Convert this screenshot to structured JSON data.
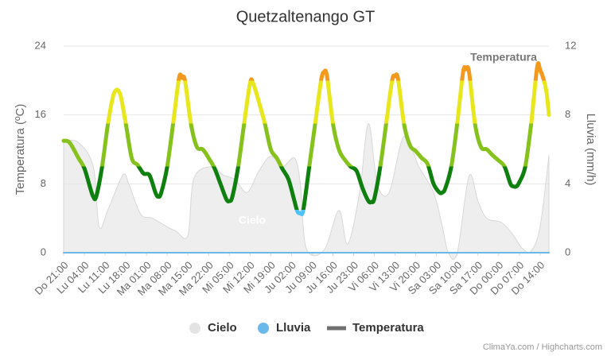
{
  "chart_data": {
    "type": "line",
    "title": "Quetzaltenango GT",
    "y_label": "Temperatura (ºC)",
    "y2_label": "Lluvia (mm/h)",
    "xlim": [
      0,
      164
    ],
    "xticks": [
      {
        "value": 0,
        "label": "Do 21:00"
      },
      {
        "value": 7,
        "label": "Lu 04:00"
      },
      {
        "value": 14,
        "label": "Lu 11:00"
      },
      {
        "value": 21,
        "label": "Lu 18:00"
      },
      {
        "value": 28,
        "label": "Ma 01:00"
      },
      {
        "value": 35,
        "label": "Ma 08:00"
      },
      {
        "value": 42,
        "label": "Ma 15:00"
      },
      {
        "value": 49,
        "label": "Ma 22:00"
      },
      {
        "value": 56,
        "label": "Mi 05:00"
      },
      {
        "value": 63,
        "label": "Mi 12:00"
      },
      {
        "value": 70,
        "label": "Mi 19:00"
      },
      {
        "value": 77,
        "label": "Ju 02:00"
      },
      {
        "value": 84,
        "label": "Ju 09:00"
      },
      {
        "value": 91,
        "label": "Ju 16:00"
      },
      {
        "value": 98,
        "label": "Ju 23:00"
      },
      {
        "value": 105,
        "label": "Vi 06:00"
      },
      {
        "value": 112,
        "label": "Vi 13:00"
      },
      {
        "value": 119,
        "label": "Vi 20:00"
      },
      {
        "value": 126,
        "label": "Sa 03:00"
      },
      {
        "value": 133,
        "label": "Sa 10:00"
      },
      {
        "value": 140,
        "label": "Sa 17:00"
      },
      {
        "value": 147,
        "label": "Do 00:00"
      },
      {
        "value": 154,
        "label": "Do 07:00"
      },
      {
        "value": 161,
        "label": "Do 14:00"
      }
    ],
    "ylim": [
      0,
      24
    ],
    "yticks": [
      0,
      8,
      16,
      24
    ],
    "y2lim": [
      0,
      12
    ],
    "y2ticks": [
      0,
      4,
      8,
      12
    ],
    "grid": true,
    "series": [
      {
        "name": "Cielo",
        "type": "area",
        "color": "#e3e3e3",
        "x": [
          0,
          5,
          10,
          12,
          15,
          20,
          22,
          26,
          30,
          35,
          38,
          42,
          44,
          50,
          54,
          58,
          62,
          66,
          70,
          74,
          78,
          80,
          82,
          88,
          93,
          96,
          100,
          103,
          106,
          110,
          115,
          120,
          125,
          128,
          130,
          133,
          137,
          140,
          143,
          148,
          152,
          155,
          158,
          161,
          164
        ],
        "values": [
          13,
          12.8,
          10,
          3,
          5,
          9,
          8,
          4.5,
          4,
          3,
          2.5,
          2,
          8.6,
          10,
          9,
          8.5,
          7,
          9.5,
          11.2,
          10,
          11,
          8,
          0.5,
          0.3,
          4.9,
          1,
          7,
          15,
          8,
          7,
          13.5,
          10,
          7,
          3,
          0,
          0,
          8.9,
          6,
          4,
          3.5,
          2,
          0.5,
          0.2,
          3,
          11.3
        ]
      },
      {
        "name": "Lluvia",
        "type": "line",
        "axis": "y2",
        "color": "#6ab9ea",
        "x": [
          0,
          164
        ],
        "values": [
          0,
          0
        ]
      },
      {
        "name": "Temperatura",
        "type": "line",
        "color": "#707070",
        "zones": [
          {
            "value": 5,
            "color": "#4fc3f7"
          },
          {
            "value": 10,
            "color": "#0f800f"
          },
          {
            "value": 15,
            "color": "#86c21d"
          },
          {
            "value": 20,
            "color": "#e8e61c"
          },
          {
            "color": "#f39a1e"
          }
        ],
        "x": [
          0,
          2,
          5,
          7,
          9,
          10,
          11,
          13,
          15,
          17,
          19,
          21,
          23,
          25,
          27,
          29,
          31,
          32,
          33,
          35,
          37,
          39,
          40,
          41,
          43,
          45,
          47,
          49,
          51,
          53,
          55,
          56,
          57,
          59,
          61,
          63,
          64,
          66,
          68,
          70,
          72,
          74,
          76,
          78,
          79,
          80,
          81,
          83,
          85,
          87,
          88,
          89,
          91,
          93,
          95,
          97,
          99,
          101,
          103,
          104,
          105,
          107,
          109,
          111,
          112,
          113,
          115,
          117,
          119,
          121,
          123,
          125,
          127,
          128,
          129,
          131,
          133,
          135,
          136,
          137,
          139,
          141,
          143,
          145,
          147,
          149,
          151,
          152,
          153,
          154,
          156,
          158,
          160,
          161,
          163,
          164
        ],
        "values": [
          13,
          12.8,
          11,
          9.8,
          7.5,
          6.5,
          6.5,
          10,
          15,
          18.5,
          18.5,
          15,
          11,
          10.2,
          9.2,
          9,
          7,
          6.5,
          7,
          10,
          15,
          20.3,
          20.3,
          20,
          15,
          12.3,
          12,
          11,
          9.8,
          8,
          6.2,
          6,
          6.5,
          10,
          15,
          19.7,
          19.7,
          17.5,
          15,
          12,
          11,
          9.7,
          8.5,
          6,
          4.8,
          4.6,
          5,
          10,
          15,
          20,
          21,
          20.5,
          15,
          12,
          10.8,
          10,
          9.5,
          7.5,
          6,
          5.9,
          6.3,
          10,
          15,
          20,
          20.5,
          20.2,
          15,
          12.5,
          11.8,
          11,
          10.3,
          8,
          7,
          7,
          7.5,
          10,
          15,
          21,
          21.3,
          21,
          15,
          12.3,
          12,
          11.3,
          10.7,
          10,
          8,
          7.7,
          7.7,
          8.2,
          10,
          15,
          21.5,
          21.3,
          19,
          16
        ]
      }
    ],
    "annotations": [
      "Cielo",
      "Temperatura"
    ],
    "credits": "ClimaYa.com / Highcharts.com"
  }
}
